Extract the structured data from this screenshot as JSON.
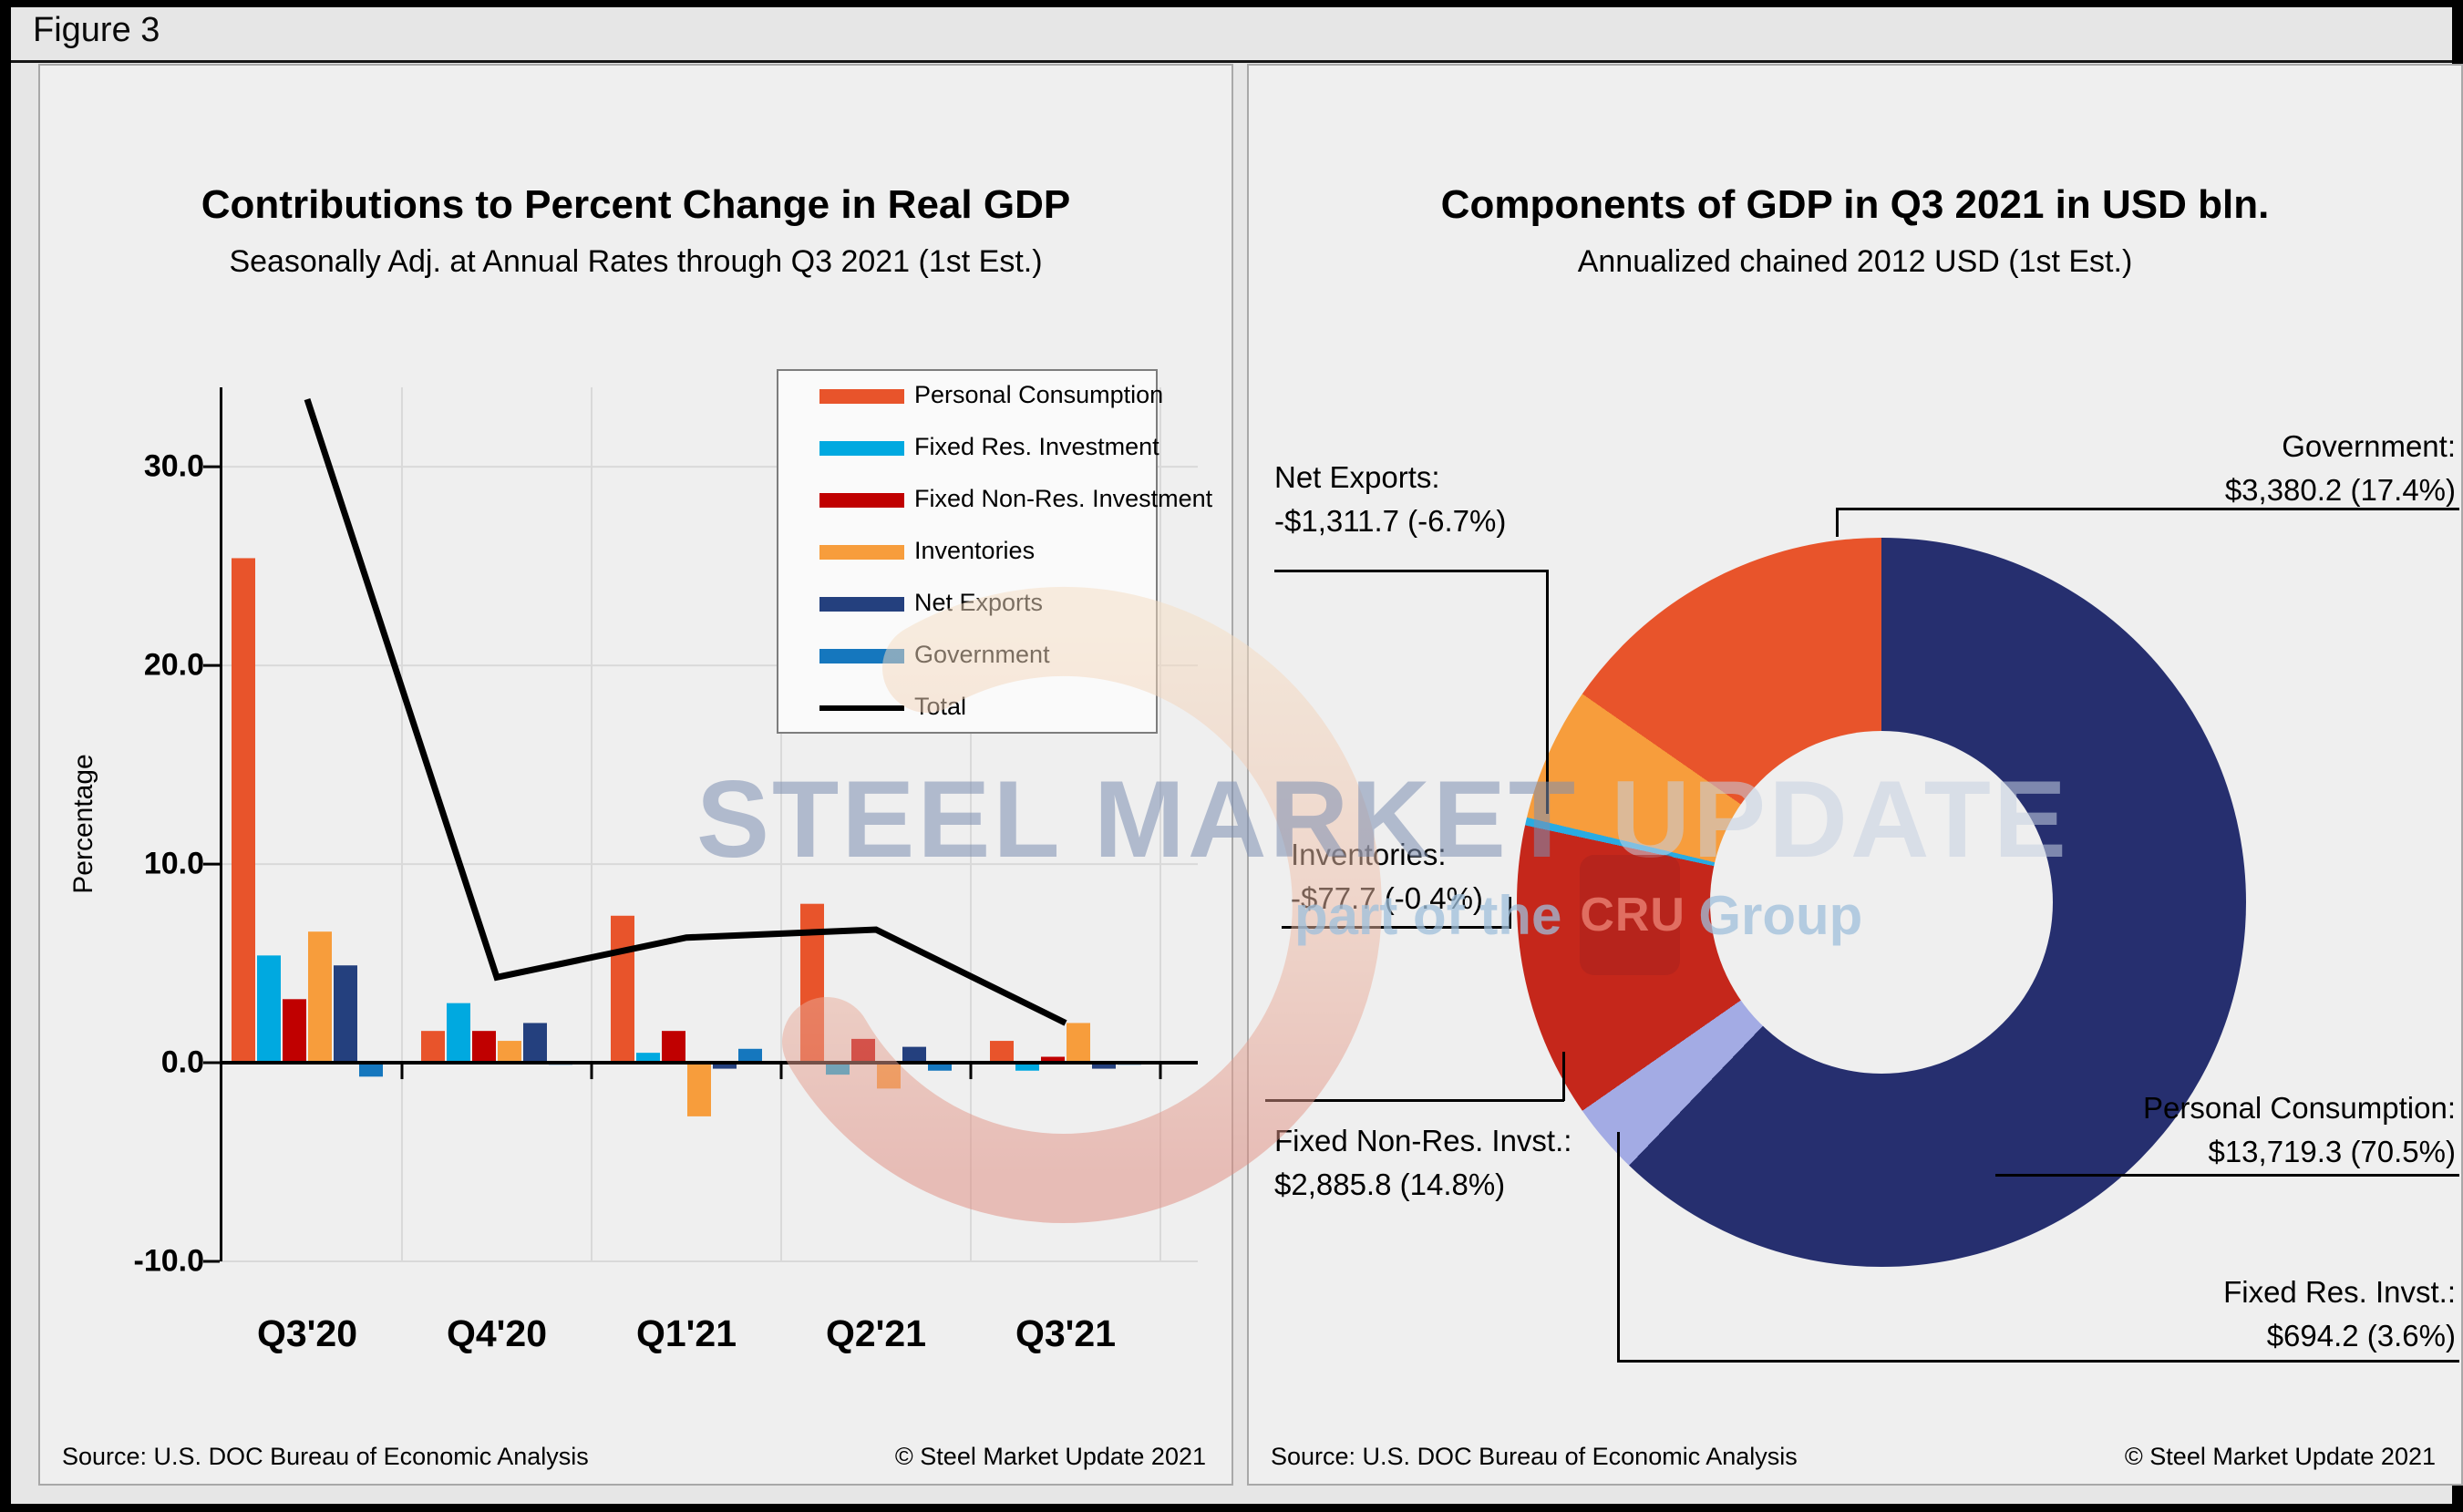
{
  "figure_label": "Figure 3",
  "left_panel": {
    "y_axis_title": "Percentage",
    "source": "Source: U.S. DOC Bureau of Economic Analysis",
    "copyright": "© Steel Market Update 2021"
  },
  "right_panel": {
    "source": "Source: U.S. DOC Bureau of Economic Analysis",
    "copyright": "© Steel Market Update 2021",
    "callouts": {
      "government": {
        "line1": "Government:",
        "line2": "$3,380.2 (17.4%)"
      },
      "net_exports": {
        "line1": "Net Exports:",
        "line2": "-$1,311.7 (-6.7%)"
      },
      "inventories": {
        "line1": "Inventories:",
        "line2": "-$77.7 (-0.4%)"
      },
      "fixed_nonres": {
        "line1": "Fixed Non-Res. Invst.:",
        "line2": "$2,885.8 (14.8%)"
      },
      "personal_consumption": {
        "line1": "Personal Consumption:",
        "line2": "$13,719.3 (70.5%)"
      },
      "fixed_res": {
        "line1": "Fixed Res. Invst.:",
        "line2": "$694.2 (3.6%)"
      }
    }
  },
  "chart_data": [
    {
      "type": "bar+line",
      "panel": "left",
      "title": "Contributions to Percent Change in Real GDP",
      "subtitle": "Seasonally Adj. at Annual Rates through Q3 2021 (1st Est.)",
      "ylabel": "Percentage",
      "categories": [
        "Q3'20",
        "Q4'20",
        "Q1'21",
        "Q2'21",
        "Q3'21"
      ],
      "series": [
        {
          "name": "Personal Consumption",
          "color": "#E8542B",
          "values": [
            25.4,
            1.6,
            7.4,
            8.0,
            1.1
          ]
        },
        {
          "name": "Fixed Res. Investment",
          "color": "#00A9E0",
          "values": [
            5.4,
            3.0,
            0.5,
            -0.6,
            -0.4
          ]
        },
        {
          "name": "Fixed Non-Res. Investment",
          "color": "#C00000",
          "values": [
            3.2,
            1.6,
            1.6,
            1.2,
            0.3
          ]
        },
        {
          "name": "Inventories",
          "color": "#F79D3C",
          "values": [
            6.6,
            1.1,
            -2.7,
            -1.3,
            2.0
          ]
        },
        {
          "name": "Net Exports",
          "color": "#24407E",
          "values": [
            4.9,
            2.0,
            -0.3,
            0.8,
            -0.3
          ]
        },
        {
          "name": "Government",
          "color": "#1577BE",
          "values": [
            -0.7,
            -0.1,
            0.7,
            -0.4,
            -0.1
          ]
        }
      ],
      "line_series": {
        "name": "Total",
        "color": "#000000",
        "values": [
          33.4,
          4.3,
          6.3,
          6.7,
          2.0
        ]
      },
      "ylim": [
        -10,
        34
      ],
      "yticks": [
        {
          "value": 30,
          "label": "30.0"
        },
        {
          "value": 20,
          "label": "20.0"
        },
        {
          "value": 10,
          "label": "10.0"
        },
        {
          "value": 0,
          "label": "0.0"
        },
        {
          "value": -10,
          "label": "-10.0"
        }
      ],
      "grid": true,
      "legend_position": "upper right"
    },
    {
      "type": "donut",
      "panel": "right",
      "title": "Components of GDP in Q3 2021 in USD bln.",
      "subtitle": "Annualized chained 2012 USD (1st Est.)",
      "start_angle": "top",
      "direction": "clockwise",
      "slices": [
        {
          "label": "Personal Consumption",
          "value": 13719.3,
          "pct_label": "70.5%",
          "color": "#262F6F"
        },
        {
          "label": "Fixed Res. Invst.",
          "value": 694.2,
          "pct_label": "3.6%",
          "color": "#A3ABE4"
        },
        {
          "label": "Fixed Non-Res. Invst.",
          "value": 2885.8,
          "pct_label": "14.8%",
          "color": "#C5271B"
        },
        {
          "label": "Inventories",
          "value": -77.7,
          "pct_label": "-0.4%",
          "color": "#29ABE2"
        },
        {
          "label": "Net Exports",
          "value": -1311.7,
          "pct_label": "-6.7%",
          "color": "#F79D3C"
        },
        {
          "label": "Government",
          "value": 3380.2,
          "pct_label": "17.4%",
          "color": "#E8542B"
        }
      ]
    }
  ],
  "watermark": {
    "line1_dark": "STEEL MARKET",
    "line1_light": " UPDATE",
    "line2_prefix": "part of the",
    "cru": "CRU",
    "line2_suffix": "Group",
    "accent_peach": "#F6DEC3",
    "accent_salmon": "#E08A7E"
  }
}
